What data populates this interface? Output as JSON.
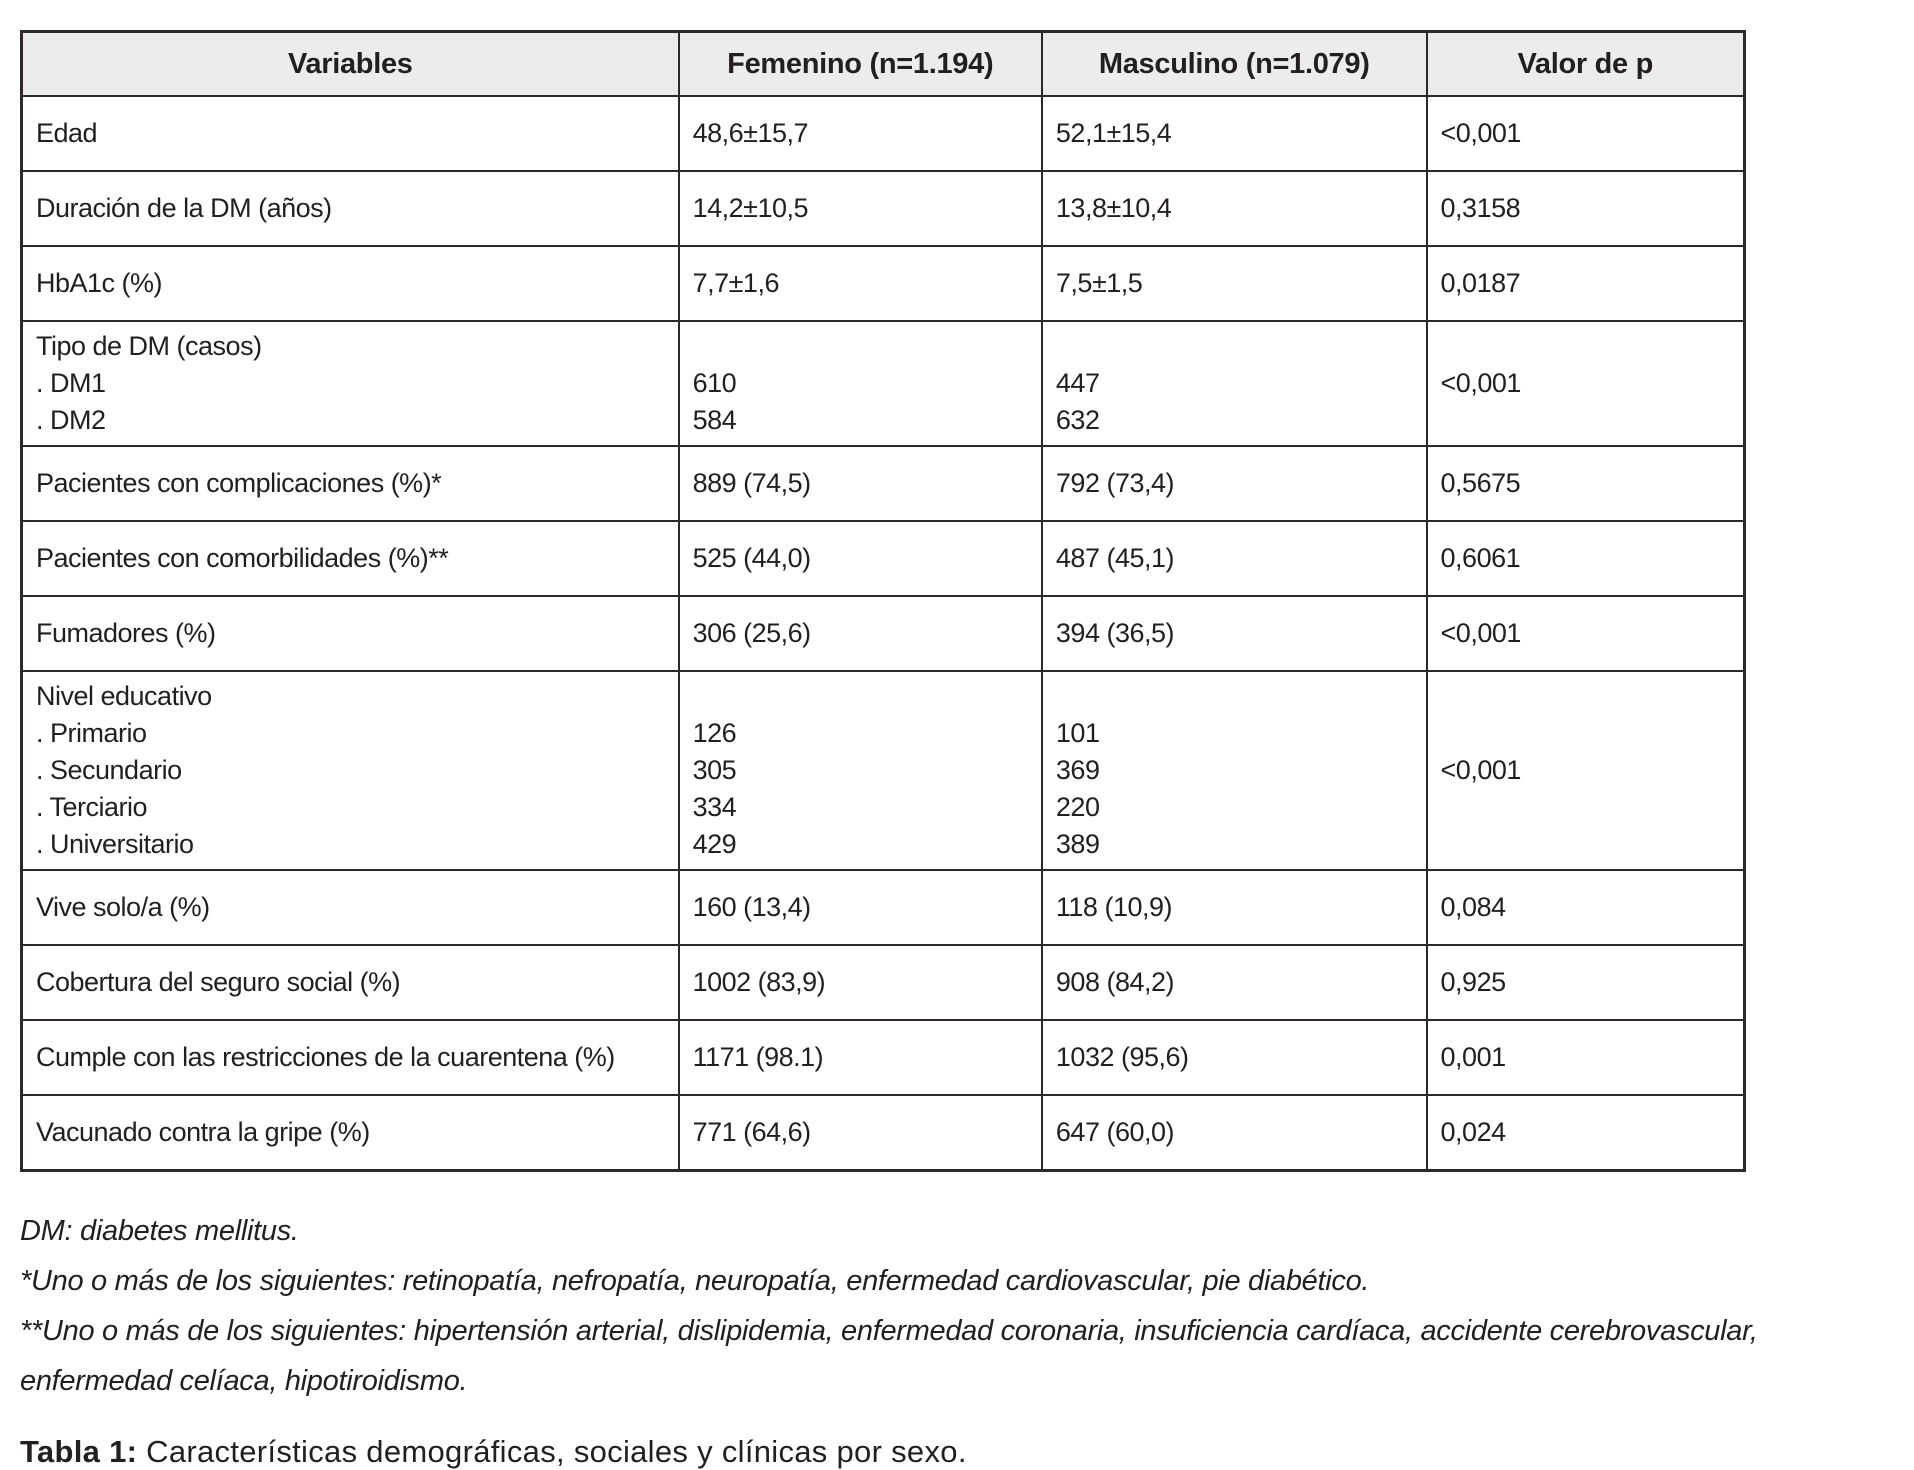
{
  "table": {
    "headers": [
      "Variables",
      "Femenino (n=1.194)",
      "Masculino (n=1.079)",
      "Valor de p"
    ],
    "rows": [
      {
        "variable": [
          "Edad"
        ],
        "femenino": [
          "48,6±15,7"
        ],
        "masculino": [
          "52,1±15,4"
        ],
        "p": "<0,001"
      },
      {
        "variable": [
          "Duración de la DM (años)"
        ],
        "femenino": [
          "14,2±10,5"
        ],
        "masculino": [
          "13,8±10,4"
        ],
        "p": "0,3158"
      },
      {
        "variable": [
          "HbA1c (%)"
        ],
        "femenino": [
          "7,7±1,6"
        ],
        "masculino": [
          "7,5±1,5"
        ],
        "p": "0,0187"
      },
      {
        "variable": [
          "Tipo de DM (casos)",
          ". DM1",
          ". DM2"
        ],
        "femenino": [
          "",
          "610",
          "584"
        ],
        "masculino": [
          "",
          "447",
          "632"
        ],
        "p": "<0,001"
      },
      {
        "variable": [
          "Pacientes con complicaciones (%)*"
        ],
        "femenino": [
          "889 (74,5)"
        ],
        "masculino": [
          "792 (73,4)"
        ],
        "p": "0,5675"
      },
      {
        "variable": [
          "Pacientes con comorbilidades (%)**"
        ],
        "femenino": [
          "525 (44,0)"
        ],
        "masculino": [
          "487 (45,1)"
        ],
        "p": "0,6061"
      },
      {
        "variable": [
          "Fumadores (%)"
        ],
        "femenino": [
          "306 (25,6)"
        ],
        "masculino": [
          "394 (36,5)"
        ],
        "p": "<0,001"
      },
      {
        "variable": [
          "Nivel educativo",
          ". Primario",
          ". Secundario",
          ". Terciario",
          ". Universitario"
        ],
        "femenino": [
          "",
          "126",
          "305",
          "334",
          "429"
        ],
        "masculino": [
          "",
          "101",
          "369",
          "220",
          "389"
        ],
        "p": "<0,001"
      },
      {
        "variable": [
          "Vive solo/a (%)"
        ],
        "femenino": [
          "160 (13,4)"
        ],
        "masculino": [
          "118 (10,9)"
        ],
        "p": "0,084"
      },
      {
        "variable": [
          "Cobertura del seguro social (%)"
        ],
        "femenino": [
          "1002 (83,9)"
        ],
        "masculino": [
          "908 (84,2)"
        ],
        "p": "0,925"
      },
      {
        "variable": [
          "Cumple con las restricciones de la cuarentena (%)"
        ],
        "femenino": [
          "1171 (98.1)"
        ],
        "masculino": [
          "1032 (95,6)"
        ],
        "p": "0,001"
      },
      {
        "variable": [
          "Vacunado contra la gripe (%)"
        ],
        "femenino": [
          "771 (64,6)"
        ],
        "masculino": [
          "647 (60,0)"
        ],
        "p": "0,024"
      }
    ]
  },
  "footnotes": [
    "DM: diabetes mellitus.",
    "*Uno o más de los siguientes: retinopatía, nefropatía, neuropatía, enfermedad cardiovascular, pie diabético.",
    "**Uno o más de los siguientes: hipertensión arterial, dislipidemia, enfermedad coronaria, insuficiencia cardíaca, accidente cerebrovascular, enfermedad celíaca, hipotiroidismo."
  ],
  "caption": {
    "label": "Tabla 1:",
    "text": " Características demográficas, sociales y clínicas por sexo."
  },
  "colors": {
    "header_background": "#ececee",
    "border": "#2e2926",
    "text": "#231f20"
  }
}
